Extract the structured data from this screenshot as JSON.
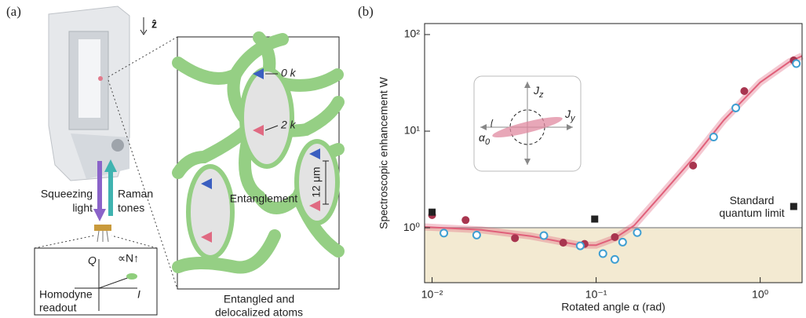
{
  "panel_a": {
    "label": "(a)",
    "z_label": "ẑ",
    "atom_labels": [
      "0 k",
      "2 k"
    ],
    "scale_label": "12 μm",
    "entanglement": "Entanglement",
    "squeezing_light": [
      "Squeezing",
      "light"
    ],
    "raman_tones": [
      "Raman",
      "tones"
    ],
    "q_axis": "Q",
    "i_axis": "I",
    "proportional": "∝N↑",
    "homodyne": [
      "Homodyne",
      "readout"
    ],
    "caption": [
      "Entangled and",
      "delocalized atoms"
    ]
  },
  "chart_data": {
    "type": "scatter",
    "panel_label": "(b)",
    "x_label": "Rotated angle α (rad)",
    "y_label": "Spectroscopic enhancement W",
    "log_x": true,
    "log_y": true,
    "xlim": [
      0.009,
      1.8
    ],
    "ylim": [
      0.27,
      130
    ],
    "xticks": [
      {
        "value": 0.01,
        "label": "10⁻²"
      },
      {
        "value": 0.1,
        "label": "10⁻¹"
      },
      {
        "value": 1,
        "label": "10⁰"
      }
    ],
    "yticks": [
      {
        "value": 1,
        "label": "10⁰"
      },
      {
        "value": 10,
        "label": "10¹"
      },
      {
        "value": 100,
        "label": "10²"
      }
    ],
    "series": [
      {
        "color": "#a8354f",
        "marker": "filled-circle",
        "x": [
          0.01,
          0.016,
          0.032,
          0.063,
          0.085,
          0.13,
          0.39,
          0.8,
          1.6
        ],
        "values": [
          1.35,
          1.2,
          0.78,
          0.7,
          0.68,
          0.8,
          4.4,
          26,
          54
        ]
      },
      {
        "color": "#3f9fd2",
        "marker": "open-circle",
        "x": [
          0.0118,
          0.0187,
          0.048,
          0.08,
          0.11,
          0.13,
          0.145,
          0.178,
          0.52,
          0.71,
          1.66
        ],
        "values": [
          0.88,
          0.84,
          0.83,
          0.65,
          0.54,
          0.47,
          0.71,
          0.89,
          8.7,
          17.4,
          50
        ]
      },
      {
        "color": "#222222",
        "marker": "square",
        "x": [
          0.01,
          0.098,
          1.6
        ],
        "values": [
          1.45,
          1.23,
          1.66
        ]
      }
    ],
    "fit": {
      "color": "#e0607a",
      "x": [
        0.009,
        0.02,
        0.04,
        0.06,
        0.08,
        0.1,
        0.13,
        0.17,
        0.25,
        0.4,
        0.6,
        1.0,
        1.5,
        1.8
      ],
      "values": [
        1.02,
        0.95,
        0.82,
        0.72,
        0.66,
        0.66,
        0.78,
        1.05,
        2.2,
        5.5,
        13,
        32,
        52,
        60
      ]
    },
    "reference": {
      "value": 1,
      "color": "#9a9a9a",
      "shade": "#f3ead2",
      "label": [
        "Standard",
        "quantum limit"
      ]
    },
    "inset": {
      "jz": [
        "J",
        "z"
      ],
      "jy": [
        "J",
        "y"
      ],
      "alpha": [
        "α",
        "0"
      ]
    }
  }
}
